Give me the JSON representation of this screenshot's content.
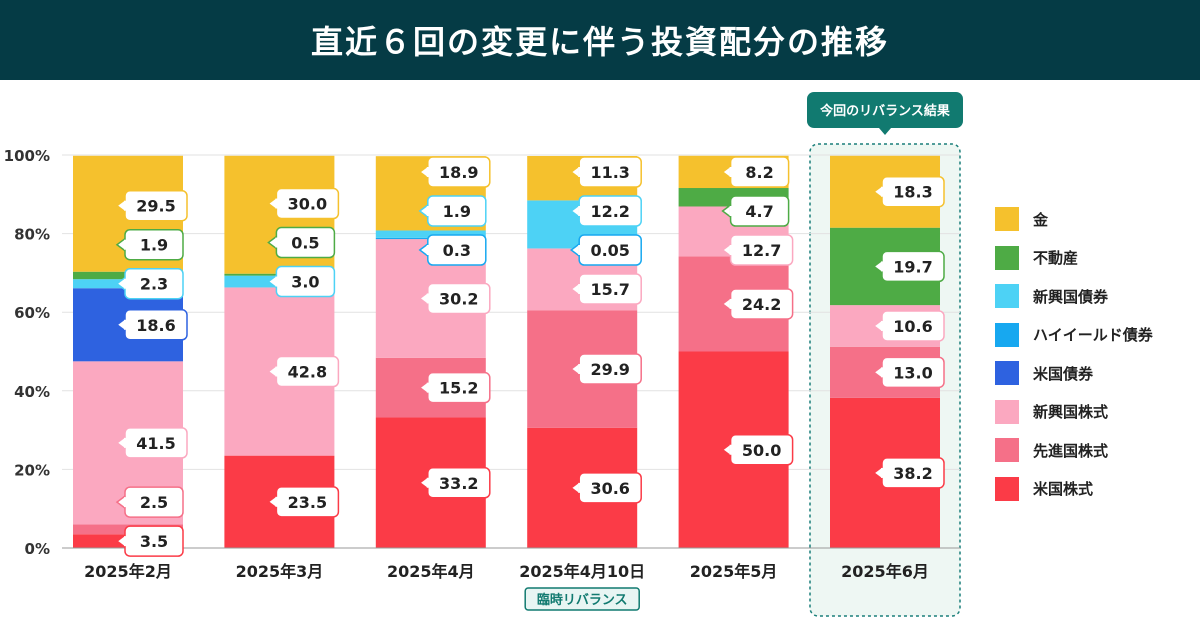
{
  "title": "直近６回の変更に伴う投資配分の推移",
  "colors": {
    "gold": "#f5c12d",
    "realestate": "#4eab45",
    "em_bond": "#4dd2f5",
    "high_yield": "#17a8f0",
    "us_bond": "#2e62e0",
    "em_equity": "#fba8c0",
    "dev_equity": "#f57088",
    "us_equity": "#fb3b47"
  },
  "legend": [
    {
      "key": "gold",
      "label": "金"
    },
    {
      "key": "realestate",
      "label": "不動産"
    },
    {
      "key": "em_bond",
      "label": "新興国債券"
    },
    {
      "key": "high_yield",
      "label": "ハイイールド債券"
    },
    {
      "key": "us_bond",
      "label": "米国債券"
    },
    {
      "key": "em_equity",
      "label": "新興国株式"
    },
    {
      "key": "dev_equity",
      "label": "先進国株式"
    },
    {
      "key": "us_equity",
      "label": "米国株式"
    }
  ],
  "chart_data": {
    "type": "bar",
    "stacked": true,
    "categories": [
      "2025年2月",
      "2025年3月",
      "2025年4月",
      "2025年4月10日",
      "2025年5月",
      "2025年6月"
    ],
    "ylim": [
      0,
      100
    ],
    "yticks": [
      "0%",
      "20%",
      "40%",
      "60%",
      "80%",
      "100%"
    ],
    "series": [
      {
        "key": "us_equity",
        "name": "米国株式",
        "values": [
          3.5,
          23.5,
          33.2,
          30.6,
          50.0,
          38.2
        ],
        "labels": [
          "3.5",
          "23.5",
          "33.2",
          "30.6",
          "50.0",
          "38.2"
        ]
      },
      {
        "key": "dev_equity",
        "name": "先進国株式",
        "values": [
          2.5,
          0,
          15.2,
          29.9,
          24.2,
          13.0
        ],
        "labels": [
          "2.5",
          null,
          "15.2",
          "29.9",
          "24.2",
          "13.0"
        ]
      },
      {
        "key": "em_equity",
        "name": "新興国株式",
        "values": [
          41.5,
          42.8,
          30.2,
          15.7,
          12.7,
          10.6
        ],
        "labels": [
          "41.5",
          "42.8",
          "30.2",
          "15.7",
          "12.7",
          "10.6"
        ]
      },
      {
        "key": "us_bond",
        "name": "米国債券",
        "values": [
          18.6,
          0,
          0,
          0,
          0,
          0
        ],
        "labels": [
          "18.6",
          null,
          null,
          null,
          null,
          null
        ]
      },
      {
        "key": "high_yield",
        "name": "ハイイールド債券",
        "values": [
          0,
          0,
          0.3,
          0.05,
          0,
          0
        ],
        "labels": [
          null,
          null,
          "0.3",
          "0.05",
          null,
          null
        ]
      },
      {
        "key": "em_bond",
        "name": "新興国債券",
        "values": [
          2.3,
          3.0,
          1.9,
          12.2,
          0,
          0
        ],
        "labels": [
          "2.3",
          "3.0",
          "1.9",
          "12.2",
          null,
          null
        ]
      },
      {
        "key": "realestate",
        "name": "不動産",
        "values": [
          1.9,
          0.5,
          0,
          0,
          4.7,
          19.7
        ],
        "labels": [
          "1.9",
          "0.5",
          null,
          null,
          "4.7",
          "19.7"
        ]
      },
      {
        "key": "gold",
        "name": "金",
        "values": [
          29.5,
          30.0,
          18.9,
          11.3,
          8.2,
          18.3
        ],
        "labels": [
          "29.5",
          "30.0",
          "18.9",
          "11.3",
          "8.2",
          "18.3"
        ]
      }
    ],
    "annotations": [
      {
        "category_index": 3,
        "text": "臨時リバランス"
      },
      {
        "category_index": 5,
        "text": "今回のリバランス結果",
        "highlight": true
      }
    ]
  }
}
